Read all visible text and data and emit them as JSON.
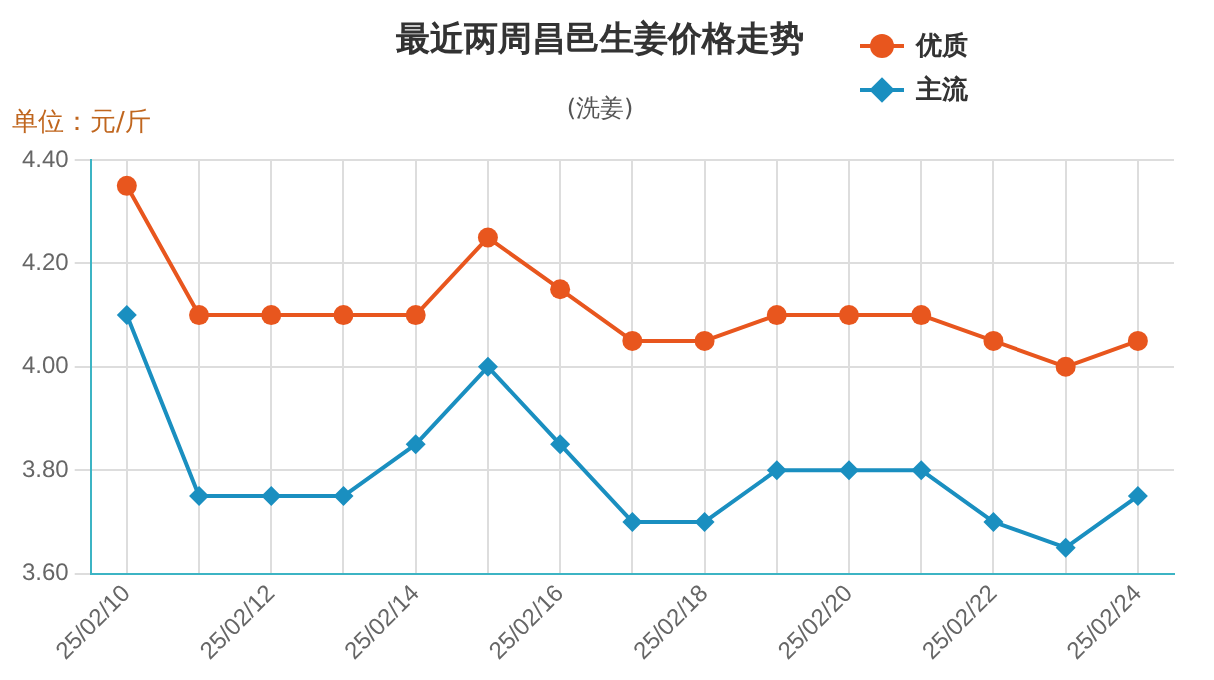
{
  "chart_data": {
    "type": "line",
    "title": "最近两周昌邑生姜价格走势",
    "subtitle": "(洗姜)",
    "ylabel": "单位：元/斤",
    "categories": [
      "25/02/10",
      null,
      "25/02/12",
      null,
      "25/02/14",
      null,
      "25/02/16",
      null,
      "25/02/18",
      null,
      "25/02/20",
      null,
      "25/02/22",
      null,
      "25/02/24"
    ],
    "series": [
      {
        "name": "优质",
        "color": "#e8561e",
        "marker": "circle",
        "values": [
          4.35,
          4.1,
          4.1,
          4.1,
          4.1,
          4.25,
          4.15,
          4.05,
          4.05,
          4.1,
          4.1,
          4.1,
          4.05,
          4.0,
          4.05
        ]
      },
      {
        "name": "主流",
        "color": "#1a8fc0",
        "marker": "diamond",
        "values": [
          4.1,
          3.75,
          3.75,
          3.75,
          3.85,
          4.0,
          3.85,
          3.7,
          3.7,
          3.8,
          3.8,
          3.8,
          3.7,
          3.65,
          3.75
        ]
      }
    ],
    "ylim": [
      3.6,
      4.4
    ],
    "yticks": [
      {
        "value": 3.6,
        "label": "3.60"
      },
      {
        "value": 3.8,
        "label": "3.80"
      },
      {
        "value": 4.0,
        "label": "4.00"
      },
      {
        "value": 4.2,
        "label": "4.20"
      },
      {
        "value": 4.4,
        "label": "4.40"
      }
    ],
    "grid": true,
    "legend": "top right",
    "line_style": "solid"
  }
}
